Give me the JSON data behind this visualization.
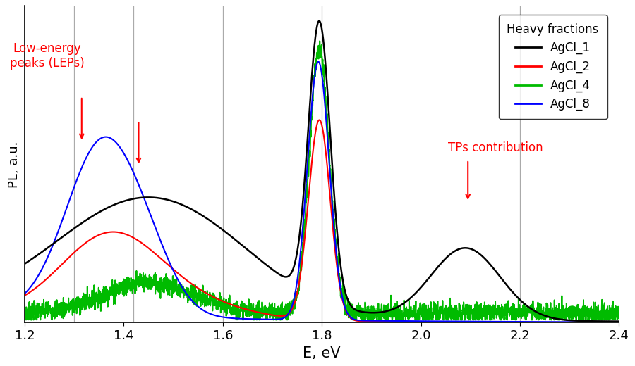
{
  "xlabel": "E, eV",
  "ylabel": "PL, a.u.",
  "xlim": [
    1.2,
    2.4
  ],
  "ylim": [
    0,
    1.05
  ],
  "xticks": [
    1.2,
    1.4,
    1.6,
    1.8,
    2.0,
    2.2,
    2.4
  ],
  "vlines": [
    1.3,
    1.42,
    1.6,
    1.8,
    2.2
  ],
  "legend_title": "Heavy fractions",
  "legend_entries": [
    "AgCl_1",
    "AgCl_2",
    "AgCl_4",
    "AgCl_8"
  ],
  "line_colors": [
    "#000000",
    "#ff0000",
    "#00bb00",
    "#0000ff"
  ],
  "lep_text": "Low-energy\npeaks (LEPs)",
  "tp_text": "TPs contribution",
  "figsize": [
    9.0,
    5.2
  ],
  "dpi": 100
}
